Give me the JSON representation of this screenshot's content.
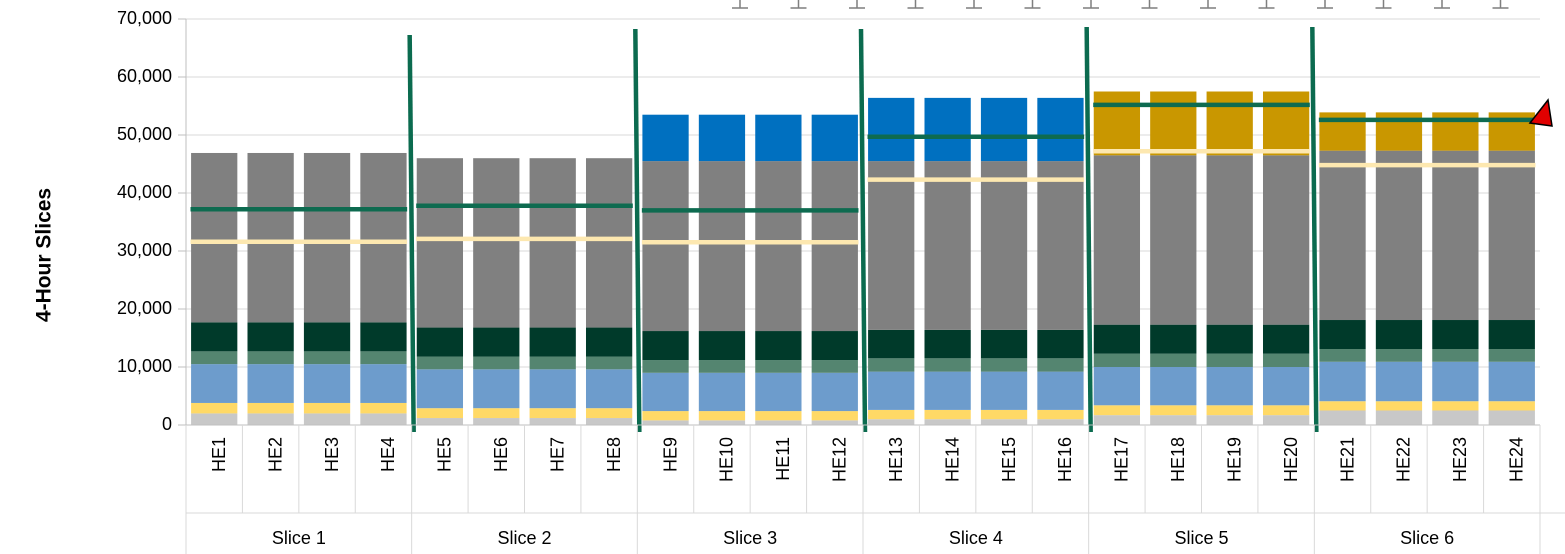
{
  "chart_data": {
    "type": "bar",
    "stacked": true,
    "ylabel": "4-Hour Slices",
    "ylim": [
      0,
      70000
    ],
    "yticks": [
      0,
      10000,
      20000,
      30000,
      40000,
      50000,
      60000,
      70000
    ],
    "ytick_labels": [
      "0",
      "10,000",
      "20,000",
      "30,000",
      "40,000",
      "50,000",
      "60,000",
      "70,000"
    ],
    "categories": [
      "HE1",
      "HE2",
      "HE3",
      "HE4",
      "HE5",
      "HE6",
      "HE7",
      "HE8",
      "HE9",
      "HE10",
      "HE11",
      "HE12",
      "HE13",
      "HE14",
      "HE15",
      "HE16",
      "HE17",
      "HE18",
      "HE19",
      "HE20",
      "HE21",
      "HE22",
      "HE23",
      "HE24"
    ],
    "groups": [
      {
        "label": "Slice 1",
        "start": 0,
        "end": 3
      },
      {
        "label": "Slice 2",
        "start": 4,
        "end": 7
      },
      {
        "label": "Slice 3",
        "start": 8,
        "end": 11
      },
      {
        "label": "Slice 4",
        "start": 12,
        "end": 15
      },
      {
        "label": "Slice 5",
        "start": 16,
        "end": 19
      },
      {
        "label": "Slice 6",
        "start": 20,
        "end": 23
      }
    ],
    "series": [
      {
        "color": "#c8c8c8",
        "values": [
          2000,
          2000,
          2000,
          2000,
          1200,
          1200,
          1200,
          1200,
          800,
          800,
          800,
          800,
          1000,
          1000,
          1000,
          1000,
          1700,
          1700,
          1700,
          1700,
          2500,
          2500,
          2500,
          2500
        ]
      },
      {
        "color": "#ffd966",
        "values": [
          1800,
          1800,
          1800,
          1800,
          1700,
          1700,
          1700,
          1700,
          1600,
          1600,
          1600,
          1600,
          1600,
          1600,
          1600,
          1600,
          1700,
          1700,
          1700,
          1700,
          1600,
          1600,
          1600,
          1600
        ]
      },
      {
        "color": "#6d9ccc",
        "values": [
          6700,
          6700,
          6700,
          6700,
          6700,
          6700,
          6700,
          6700,
          6600,
          6600,
          6600,
          6600,
          6600,
          6600,
          6600,
          6600,
          6600,
          6600,
          6600,
          6600,
          6800,
          6800,
          6800,
          6800
        ]
      },
      {
        "color": "#548570",
        "values": [
          2200,
          2200,
          2200,
          2200,
          2200,
          2200,
          2200,
          2200,
          2200,
          2200,
          2200,
          2200,
          2300,
          2300,
          2300,
          2300,
          2300,
          2300,
          2300,
          2300,
          2200,
          2200,
          2200,
          2200
        ]
      },
      {
        "color": "#003a2a",
        "values": [
          5000,
          5000,
          5000,
          5000,
          5000,
          5000,
          5000,
          5000,
          5000,
          5000,
          5000,
          5000,
          4900,
          4900,
          4900,
          4900,
          5000,
          5000,
          5000,
          5000,
          5000,
          5000,
          5000,
          5000
        ]
      },
      {
        "color": "#808080",
        "values": [
          29200,
          29200,
          29200,
          29200,
          29200,
          29200,
          29200,
          29200,
          29300,
          29300,
          29300,
          29300,
          29100,
          29100,
          29100,
          29100,
          29200,
          29200,
          29200,
          29200,
          29200,
          29200,
          29200,
          29200
        ]
      },
      {
        "color": "#0070c0",
        "values": [
          0,
          0,
          0,
          0,
          0,
          0,
          0,
          0,
          8000,
          8000,
          8000,
          8000,
          10900,
          10900,
          10900,
          10900,
          0,
          0,
          0,
          0,
          0,
          0,
          0,
          0
        ]
      },
      {
        "color": "#c99700",
        "values": [
          0,
          0,
          0,
          0,
          0,
          0,
          0,
          0,
          0,
          0,
          0,
          0,
          0,
          0,
          0,
          0,
          11000,
          11000,
          11000,
          11000,
          6600,
          6600,
          6600,
          6600
        ]
      }
    ],
    "overlay_lines": [
      {
        "color": "#0e6b50",
        "values": [
          37200,
          37800,
          37000,
          49700,
          55200,
          52600
        ]
      },
      {
        "color": "#fde8b0",
        "values": [
          31600,
          32100,
          31500,
          42300,
          47200,
          44800
        ]
      }
    ],
    "slice_divider_color": "#0b6b4f",
    "grid": true
  }
}
